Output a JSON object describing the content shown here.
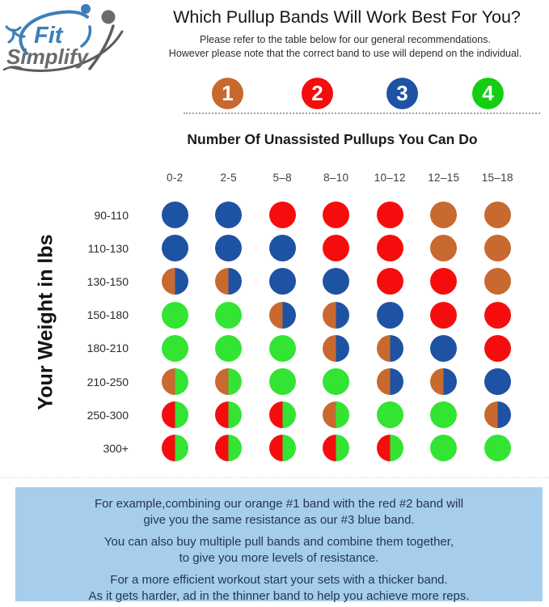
{
  "logo": {
    "fit": "Fit",
    "simplify": "Simplify"
  },
  "header": {
    "title": "Which Pullup Bands Will Work Best For You?",
    "subtitle_line1": "Please refer to the table below for our general recommendations.",
    "subtitle_line2": "However please note that the correct band to use will depend on the individual."
  },
  "legend": {
    "bands": [
      {
        "number": "1",
        "name": "orange",
        "color": "#C8682E"
      },
      {
        "number": "2",
        "name": "red",
        "color": "#F50D0D"
      },
      {
        "number": "3",
        "name": "blue",
        "color": "#1E52A2"
      },
      {
        "number": "4",
        "name": "green",
        "color": "#14CE14"
      }
    ]
  },
  "palette": {
    "orange": "#C8692F",
    "red": "#F50D0D",
    "blue": "#1E52A2",
    "green": "#33E433"
  },
  "table": {
    "columns_header": "Number Of Unassisted Pullups You Can Do",
    "columns": [
      "0-2",
      "2-5",
      "5–8",
      "8–10",
      "10–12",
      "12–15",
      "15–18"
    ],
    "row_axis_label": "Your Weight in lbs",
    "rows": [
      {
        "label": "90-110",
        "cells": [
          "blue",
          "blue",
          "red",
          "red",
          "red",
          "orange",
          "orange"
        ]
      },
      {
        "label": "110-130",
        "cells": [
          "blue",
          "blue",
          "blue",
          "red",
          "red",
          "orange",
          "orange"
        ]
      },
      {
        "label": "130-150",
        "cells": [
          "orange|blue",
          "orange|blue",
          "blue",
          "blue",
          "red",
          "red",
          "orange"
        ]
      },
      {
        "label": "150-180",
        "cells": [
          "green",
          "green",
          "orange|blue",
          "orange|blue",
          "blue",
          "red",
          "red"
        ]
      },
      {
        "label": "180-210",
        "cells": [
          "green",
          "green",
          "green",
          "orange|blue",
          "orange|blue",
          "blue",
          "red"
        ]
      },
      {
        "label": "210-250",
        "cells": [
          "orange|green",
          "orange|green",
          "green",
          "green",
          "orange|blue",
          "orange|blue",
          "blue"
        ]
      },
      {
        "label": "250-300",
        "cells": [
          "red|green",
          "red|green",
          "red|green",
          "orange|green",
          "green",
          "green",
          "orange|blue"
        ]
      },
      {
        "label": "300+",
        "cells": [
          "red|green",
          "red|green",
          "red|green",
          "red|green",
          "red|green",
          "green",
          "green"
        ]
      }
    ]
  },
  "footer": {
    "lines": [
      "For example,combining our orange #1 band with the red #2 band will",
      "give you the same resistance as our #3 blue band.",
      "You can also buy multiple pull bands and combine them together,",
      "to give you more levels of resistance.",
      "For a more efficient workout start your sets with a thicker band.",
      "As it gets harder, ad in the thinner band to help you achieve more reps."
    ]
  },
  "chart_data": {
    "type": "table",
    "title": "Which Pullup Bands Will Work Best For You?",
    "x_axis_label": "Number Of Unassisted Pullups You Can Do",
    "y_axis_label": "Your Weight in lbs",
    "columns": [
      "0-2",
      "2-5",
      "5–8",
      "8–10",
      "10–12",
      "12–15",
      "15–18"
    ],
    "rows": [
      "90-110",
      "110-130",
      "130-150",
      "150-180",
      "180-210",
      "210-250",
      "250-300",
      "300+"
    ],
    "legend": [
      {
        "band": 1,
        "color_name": "orange",
        "hex": "#C8682E"
      },
      {
        "band": 2,
        "color_name": "red",
        "hex": "#F50D0D"
      },
      {
        "band": 3,
        "color_name": "blue",
        "hex": "#1E52A2"
      },
      {
        "band": 4,
        "color_name": "green",
        "hex": "#14CE14"
      }
    ],
    "matrix": [
      [
        "blue",
        "blue",
        "red",
        "red",
        "red",
        "orange",
        "orange"
      ],
      [
        "blue",
        "blue",
        "blue",
        "red",
        "red",
        "orange",
        "orange"
      ],
      [
        "orange|blue",
        "orange|blue",
        "blue",
        "blue",
        "red",
        "red",
        "orange"
      ],
      [
        "green",
        "green",
        "orange|blue",
        "orange|blue",
        "blue",
        "red",
        "red"
      ],
      [
        "green",
        "green",
        "green",
        "orange|blue",
        "orange|blue",
        "blue",
        "red"
      ],
      [
        "orange|green",
        "orange|green",
        "green",
        "green",
        "orange|blue",
        "orange|blue",
        "blue"
      ],
      [
        "red|green",
        "red|green",
        "red|green",
        "orange|green",
        "green",
        "green",
        "orange|blue"
      ],
      [
        "red|green",
        "red|green",
        "red|green",
        "red|green",
        "red|green",
        "green",
        "green"
      ]
    ],
    "cell_encoding": "single color = one band; 'a|b' = left half color a, right half color b (combined bands)"
  }
}
